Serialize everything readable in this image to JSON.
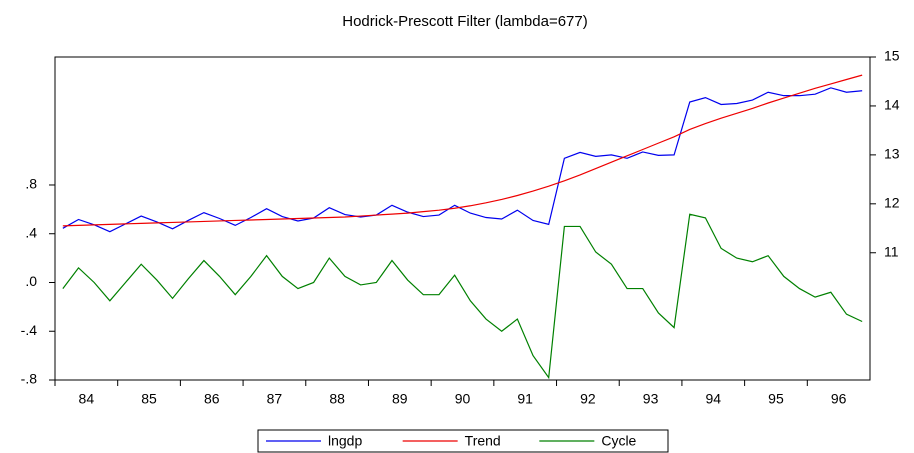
{
  "chart_data": {
    "type": "line",
    "title": "Hodrick-Prescott Filter (lambda=677)",
    "categories": [
      null,
      "84",
      null,
      null,
      null,
      "85",
      null,
      null,
      null,
      "86",
      null,
      null,
      null,
      "87",
      null,
      null,
      null,
      "88",
      null,
      null,
      null,
      "89",
      null,
      null,
      null,
      "90",
      null,
      null,
      null,
      "91",
      null,
      null,
      null,
      "92",
      null,
      null,
      null,
      "93",
      null,
      null,
      null,
      "94",
      null,
      null,
      null,
      "95",
      null,
      null,
      null,
      "96",
      null,
      null
    ],
    "series": [
      {
        "name": "lngdp",
        "color": "#0000ee",
        "axis": "y2",
        "values": [
          11.5,
          11.68,
          11.57,
          11.43,
          11.59,
          11.75,
          11.63,
          11.49,
          11.66,
          11.82,
          11.7,
          11.56,
          11.72,
          11.9,
          11.74,
          11.65,
          11.71,
          11.92,
          11.78,
          11.73,
          11.77,
          11.97,
          11.83,
          11.74,
          11.77,
          11.97,
          11.81,
          11.72,
          11.69,
          11.87,
          11.66,
          11.58,
          12.93,
          13.05,
          12.97,
          13.0,
          12.93,
          13.06,
          12.99,
          13.0,
          14.08,
          14.17,
          14.03,
          14.05,
          14.12,
          14.28,
          14.21,
          14.21,
          14.24,
          14.37,
          14.28,
          14.31
        ]
      },
      {
        "name": "Trend",
        "color": "#ee0000",
        "axis": "y2",
        "values": [
          11.55,
          11.56,
          11.57,
          11.58,
          11.59,
          11.6,
          11.61,
          11.62,
          11.63,
          11.64,
          11.65,
          11.66,
          11.67,
          11.68,
          11.69,
          11.7,
          11.71,
          11.72,
          11.73,
          11.75,
          11.77,
          11.79,
          11.81,
          11.84,
          11.87,
          11.91,
          11.96,
          12.02,
          12.09,
          12.17,
          12.26,
          12.36,
          12.47,
          12.59,
          12.72,
          12.85,
          12.98,
          13.11,
          13.24,
          13.37,
          13.52,
          13.64,
          13.75,
          13.85,
          13.95,
          14.06,
          14.16,
          14.26,
          14.36,
          14.45,
          14.54,
          14.63
        ]
      },
      {
        "name": "Cycle",
        "color": "#008000",
        "axis": "y",
        "values": [
          -0.05,
          0.12,
          0.0,
          -0.15,
          0.0,
          0.15,
          0.02,
          -0.13,
          0.03,
          0.18,
          0.05,
          -0.1,
          0.05,
          0.22,
          0.05,
          -0.05,
          0.0,
          0.2,
          0.05,
          -0.02,
          0.0,
          0.18,
          0.02,
          -0.1,
          -0.1,
          0.06,
          -0.15,
          -0.3,
          -0.4,
          -0.3,
          -0.6,
          -0.78,
          0.46,
          0.46,
          0.25,
          0.15,
          -0.05,
          -0.05,
          -0.25,
          -0.37,
          0.56,
          0.53,
          0.28,
          0.2,
          0.17,
          0.22,
          0.05,
          -0.05,
          -0.12,
          -0.08,
          -0.26,
          -0.32
        ]
      }
    ],
    "ylim": [
      -0.8,
      1.85
    ],
    "yticks": [
      {
        "value": -0.8,
        "label": "-.8"
      },
      {
        "value": -0.4,
        "label": "-.4"
      },
      {
        "value": 0,
        "label": ".0"
      },
      {
        "value": 0.4,
        "label": ".4"
      },
      {
        "value": 0.8,
        "label": ".8"
      }
    ],
    "y2lim": [
      8.4,
      15
    ],
    "y2ticks": [
      11,
      12,
      13,
      14,
      15
    ],
    "legend": "bottom"
  }
}
